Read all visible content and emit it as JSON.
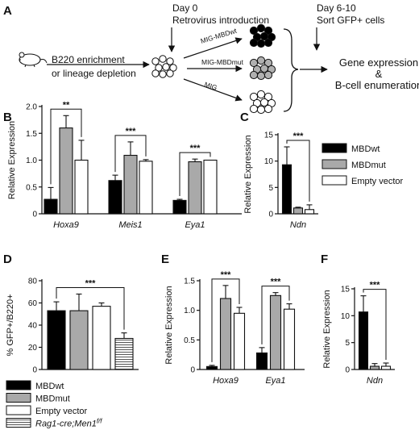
{
  "panel_a": {
    "label": "A",
    "day0": "Day 0",
    "retro": "Retrovirus introduction",
    "day610": "Day 6-10",
    "sort": "Sort GFP+ cells",
    "enrich1": "B220 enrichment",
    "enrich2": "or lineage depletion",
    "arrow_wt": "MIG-MBDwt",
    "arrow_mut": "MIG-MBDmut",
    "arrow_mig": "MIG",
    "out1": "Gene expression",
    "out2": "&",
    "out3": "B-cell enumeration",
    "colors": {
      "wt": "#000000",
      "mut": "#b0b0b0",
      "mig": "#ffffff"
    }
  },
  "legend_top": {
    "items": [
      {
        "name": "MBDwt",
        "fill": "#000000"
      },
      {
        "name": "MBDmut",
        "fill": "#a9a9a9"
      },
      {
        "name": "Empty vector",
        "fill": "#ffffff"
      }
    ]
  },
  "legend_bottom": {
    "items": [
      {
        "name": "MBDwt",
        "fill": "#000000"
      },
      {
        "name": "MBDmut",
        "fill": "#a9a9a9"
      },
      {
        "name": "Empty vector",
        "fill": "#ffffff"
      },
      {
        "name": "Rag1-cre;Men1",
        "sup": "f/f",
        "fill": "hatch"
      }
    ]
  },
  "chart_data": [
    {
      "panel": "B",
      "type": "bar",
      "ylabel": "Relative Expression",
      "ylim": [
        0,
        2.0
      ],
      "yticks": [
        0,
        0.5,
        1.0,
        1.5,
        2.0
      ],
      "ytick_labels": [
        "0",
        "0.5",
        "1.0",
        "1.5",
        "2.0"
      ],
      "categories": [
        "Hoxa9",
        "Meis1",
        "Eya1"
      ],
      "series": [
        {
          "name": "MBDwt",
          "values": [
            0.27,
            0.62,
            0.25
          ],
          "errors": [
            0.22,
            0.1,
            0.02
          ]
        },
        {
          "name": "MBDmut",
          "values": [
            1.6,
            1.09,
            0.97
          ],
          "errors": [
            0.23,
            0.25,
            0.05
          ]
        },
        {
          "name": "Empty vector",
          "values": [
            1.0,
            0.98,
            1.0
          ],
          "errors": [
            0.37,
            0.03,
            0.0
          ]
        }
      ],
      "significance": [
        {
          "category": 0,
          "label": "**"
        },
        {
          "category": 1,
          "label": "***"
        },
        {
          "category": 2,
          "label": "***"
        }
      ]
    },
    {
      "panel": "C",
      "type": "bar",
      "ylabel": "Relative Expression",
      "ylim": [
        0,
        15
      ],
      "yticks": [
        0,
        5,
        10,
        15
      ],
      "ytick_labels": [
        "0",
        "5",
        "10",
        "15"
      ],
      "categories": [
        "Ndn"
      ],
      "series": [
        {
          "name": "MBDwt",
          "values": [
            9.3
          ],
          "errors": [
            3.4
          ]
        },
        {
          "name": "MBDmut",
          "values": [
            1.1
          ],
          "errors": [
            0.15
          ]
        },
        {
          "name": "Empty vector",
          "values": [
            0.8
          ],
          "errors": [
            0.9
          ]
        }
      ],
      "significance": [
        {
          "category": 0,
          "label": "***"
        }
      ]
    },
    {
      "panel": "D",
      "type": "bar",
      "ylabel": "% GFP+/B220+",
      "ylim": [
        0,
        80
      ],
      "yticks": [
        0,
        20,
        40,
        60,
        80
      ],
      "ytick_labels": [
        "0",
        "20",
        "40",
        "60",
        "80"
      ],
      "categories": [
        ""
      ],
      "series": [
        {
          "name": "MBDwt",
          "values": [
            53
          ],
          "errors": [
            8
          ]
        },
        {
          "name": "MBDmut",
          "values": [
            53
          ],
          "errors": [
            15
          ]
        },
        {
          "name": "Empty vector",
          "values": [
            57
          ],
          "errors": [
            3
          ]
        },
        {
          "name": "Rag1-cre;Men1f/f",
          "values": [
            28
          ],
          "errors": [
            5
          ]
        }
      ],
      "significance": [
        {
          "category": 0,
          "label": "***"
        }
      ]
    },
    {
      "panel": "E",
      "type": "bar",
      "ylabel": "Relative Expression",
      "ylim": [
        0,
        1.5
      ],
      "yticks": [
        0,
        0.5,
        1.0,
        1.5
      ],
      "ytick_labels": [
        "0",
        "0.5",
        "1.0",
        "1.5"
      ],
      "categories": [
        "Hoxa9",
        "Eya1"
      ],
      "series": [
        {
          "name": "MBDwt",
          "values": [
            0.05,
            0.28
          ],
          "errors": [
            0.02,
            0.09
          ]
        },
        {
          "name": "MBDmut",
          "values": [
            1.2,
            1.25
          ],
          "errors": [
            0.22,
            0.05
          ]
        },
        {
          "name": "Empty vector",
          "values": [
            0.95,
            1.02
          ],
          "errors": [
            0.1,
            0.09
          ]
        }
      ],
      "significance": [
        {
          "category": 0,
          "label": "***"
        },
        {
          "category": 1,
          "label": "***"
        }
      ]
    },
    {
      "panel": "F",
      "type": "bar",
      "ylabel": "Relative Expression",
      "ylim": [
        0,
        15
      ],
      "yticks": [
        0,
        5,
        10,
        15
      ],
      "ytick_labels": [
        "0",
        "5",
        "10",
        "15"
      ],
      "categories": [
        "Ndn"
      ],
      "series": [
        {
          "name": "MBDwt",
          "values": [
            10.7
          ],
          "errors": [
            3.0
          ]
        },
        {
          "name": "MBDmut",
          "values": [
            0.6
          ],
          "errors": [
            0.5
          ]
        },
        {
          "name": "Empty vector",
          "values": [
            0.6
          ],
          "errors": [
            0.6
          ]
        }
      ],
      "significance": [
        {
          "category": 0,
          "label": "***"
        }
      ]
    }
  ]
}
